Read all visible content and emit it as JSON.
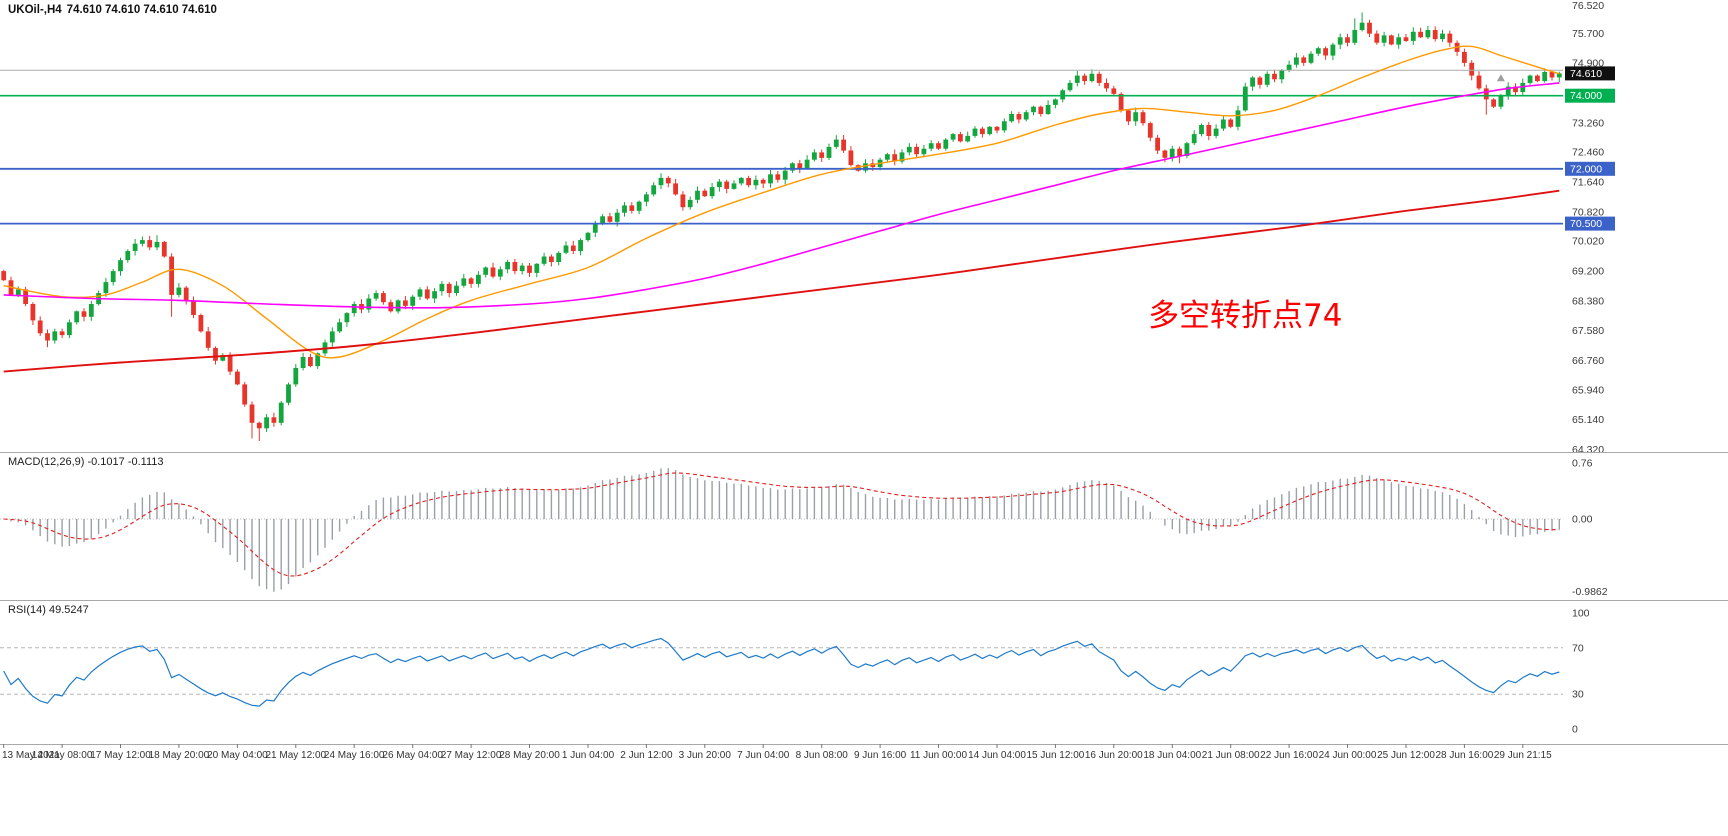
{
  "chart_data": [
    {
      "id": "price",
      "type": "candlestick",
      "title": "UKOil-,H4",
      "symbol": "UKOil-",
      "timeframe": "H4",
      "ohlc_readout": "74.610 74.610 74.610 74.610",
      "y_axis": {
        "max": 76.62,
        "min": 64.25,
        "tick_labels": [
          "76.520",
          "75.700",
          "74.900",
          "73.260",
          "72.460",
          "71.640",
          "70.820",
          "70.020",
          "69.200",
          "68.380",
          "67.580",
          "66.760",
          "65.940",
          "65.140",
          "64.320"
        ],
        "tick_values": [
          76.52,
          75.7,
          74.9,
          73.26,
          72.46,
          71.64,
          70.82,
          70.02,
          69.2,
          68.38,
          67.58,
          66.76,
          65.94,
          65.14,
          64.32
        ]
      },
      "up_color": "#14A63E",
      "down_color": "#E8352B",
      "first_open": 69.2,
      "closes": [
        68.95,
        68.55,
        68.7,
        68.3,
        67.85,
        67.5,
        67.3,
        67.55,
        67.45,
        67.8,
        68.1,
        67.95,
        68.3,
        68.6,
        68.9,
        69.2,
        69.5,
        69.75,
        69.95,
        70.05,
        69.85,
        70.0,
        69.6,
        68.55,
        68.75,
        68.4,
        68.0,
        67.55,
        67.1,
        66.75,
        66.9,
        66.45,
        66.1,
        65.55,
        65.05,
        64.9,
        65.2,
        65.05,
        65.6,
        66.1,
        66.55,
        66.85,
        66.6,
        66.95,
        67.25,
        67.55,
        67.8,
        68.05,
        68.3,
        68.15,
        68.45,
        68.6,
        68.35,
        68.1,
        68.4,
        68.25,
        68.5,
        68.7,
        68.45,
        68.65,
        68.85,
        68.6,
        68.8,
        69.0,
        68.85,
        69.1,
        69.3,
        69.05,
        69.25,
        69.45,
        69.2,
        69.35,
        69.15,
        69.4,
        69.6,
        69.45,
        69.7,
        69.9,
        69.75,
        70.05,
        70.25,
        70.5,
        70.7,
        70.55,
        70.8,
        71.0,
        70.85,
        71.1,
        71.3,
        71.55,
        71.75,
        71.6,
        71.3,
        70.95,
        71.15,
        71.4,
        71.25,
        71.5,
        71.65,
        71.45,
        71.6,
        71.75,
        71.55,
        71.7,
        71.6,
        71.85,
        71.7,
        71.95,
        72.15,
        72.0,
        72.25,
        72.45,
        72.3,
        72.6,
        72.8,
        72.5,
        72.1,
        71.95,
        72.15,
        72.05,
        72.25,
        72.4,
        72.2,
        72.45,
        72.6,
        72.4,
        72.55,
        72.7,
        72.55,
        72.8,
        72.95,
        72.75,
        72.9,
        73.1,
        72.95,
        73.15,
        73.05,
        73.3,
        73.5,
        73.35,
        73.55,
        73.7,
        73.5,
        73.75,
        73.9,
        74.15,
        74.35,
        74.55,
        74.4,
        74.6,
        74.35,
        74.2,
        74.05,
        73.6,
        73.3,
        73.55,
        73.25,
        72.85,
        72.5,
        72.3,
        72.55,
        72.35,
        72.7,
        72.95,
        73.2,
        72.9,
        73.1,
        73.35,
        73.15,
        73.6,
        74.25,
        74.5,
        74.3,
        74.6,
        74.45,
        74.7,
        74.85,
        75.05,
        74.9,
        75.15,
        75.3,
        75.1,
        75.4,
        75.6,
        75.45,
        75.8,
        76.0,
        75.7,
        75.45,
        75.65,
        75.4,
        75.6,
        75.5,
        75.75,
        75.6,
        75.8,
        75.55,
        75.7,
        75.45,
        75.2,
        74.9,
        74.55,
        74.2,
        73.9,
        73.7,
        74.0,
        74.25,
        74.1,
        74.35,
        74.55,
        74.4,
        74.65,
        74.5,
        74.61
      ],
      "wick_overrides": [
        {
          "bar": 6,
          "low": 67.12
        },
        {
          "bar": 21,
          "high": 70.18
        },
        {
          "bar": 23,
          "low": 67.95
        },
        {
          "bar": 34,
          "low": 64.62
        },
        {
          "bar": 35,
          "low": 64.55
        },
        {
          "bar": 90,
          "high": 71.88
        },
        {
          "bar": 114,
          "high": 72.92
        },
        {
          "bar": 147,
          "high": 74.68
        },
        {
          "bar": 149,
          "high": 74.72
        },
        {
          "bar": 159,
          "low": 72.18
        },
        {
          "bar": 161,
          "low": 72.15
        },
        {
          "bar": 185,
          "high": 76.12
        },
        {
          "bar": 186,
          "high": 76.28
        },
        {
          "bar": 203,
          "low": 73.48
        },
        {
          "bar": 211,
          "high": 74.75
        }
      ],
      "moving_averages": [
        {
          "name": "fast",
          "color": "#FF9900",
          "width": 1.4,
          "points": [
            [
              0,
              68.8
            ],
            [
              8,
              68.5
            ],
            [
              14,
              68.55
            ],
            [
              19,
              68.9
            ],
            [
              24,
              69.25
            ],
            [
              30,
              68.8
            ],
            [
              36,
              67.9
            ],
            [
              42,
              67.0
            ],
            [
              46,
              66.85
            ],
            [
              52,
              67.3
            ],
            [
              58,
              67.9
            ],
            [
              64,
              68.4
            ],
            [
              72,
              68.85
            ],
            [
              80,
              69.3
            ],
            [
              88,
              70.1
            ],
            [
              96,
              70.8
            ],
            [
              104,
              71.35
            ],
            [
              112,
              71.85
            ],
            [
              120,
              72.15
            ],
            [
              128,
              72.4
            ],
            [
              136,
              72.7
            ],
            [
              144,
              73.2
            ],
            [
              150,
              73.5
            ],
            [
              156,
              73.65
            ],
            [
              162,
              73.55
            ],
            [
              168,
              73.45
            ],
            [
              174,
              73.6
            ],
            [
              180,
              74.0
            ],
            [
              186,
              74.5
            ],
            [
              192,
              74.95
            ],
            [
              197,
              75.25
            ],
            [
              201,
              75.35
            ],
            [
              205,
              75.1
            ],
            [
              209,
              74.85
            ],
            [
              213,
              74.6
            ]
          ]
        },
        {
          "name": "mid",
          "color": "#FF00FF",
          "width": 1.6,
          "points": [
            [
              0,
              68.55
            ],
            [
              12,
              68.45
            ],
            [
              24,
              68.4
            ],
            [
              36,
              68.3
            ],
            [
              48,
              68.22
            ],
            [
              60,
              68.2
            ],
            [
              72,
              68.3
            ],
            [
              80,
              68.45
            ],
            [
              88,
              68.7
            ],
            [
              96,
              69.0
            ],
            [
              104,
              69.4
            ],
            [
              112,
              69.85
            ],
            [
              120,
              70.3
            ],
            [
              128,
              70.75
            ],
            [
              136,
              71.15
            ],
            [
              144,
              71.55
            ],
            [
              152,
              71.95
            ],
            [
              160,
              72.3
            ],
            [
              168,
              72.65
            ],
            [
              176,
              73.0
            ],
            [
              184,
              73.35
            ],
            [
              192,
              73.7
            ],
            [
              200,
              74.0
            ],
            [
              206,
              74.2
            ],
            [
              213,
              74.35
            ]
          ]
        },
        {
          "name": "slow",
          "color": "#E01010",
          "width": 1.9,
          "points": [
            [
              0,
              66.45
            ],
            [
              16,
              66.7
            ],
            [
              32,
              66.9
            ],
            [
              48,
              67.15
            ],
            [
              64,
              67.5
            ],
            [
              80,
              67.9
            ],
            [
              96,
              68.3
            ],
            [
              112,
              68.7
            ],
            [
              128,
              69.1
            ],
            [
              144,
              69.55
            ],
            [
              160,
              70.0
            ],
            [
              176,
              70.4
            ],
            [
              192,
              70.85
            ],
            [
              204,
              71.15
            ],
            [
              213,
              71.4
            ]
          ]
        }
      ],
      "horizontal_lines": [
        {
          "price": 74.7,
          "color": "#ABABAB",
          "width": 1
        },
        {
          "price": 74.0,
          "color": "#00B050",
          "width": 1.6,
          "badge": "74.000"
        },
        {
          "price": 72.0,
          "color": "#3A62C9",
          "width": 1.8,
          "badge": "72.000"
        },
        {
          "price": 70.5,
          "color": "#3A62C9",
          "width": 1.8,
          "badge": "70.500"
        }
      ],
      "price_marker": {
        "label": "74.610",
        "value": 74.61,
        "bg": "#101010",
        "fg": "#FFFFFF"
      },
      "annotations": [
        {
          "type": "text",
          "text": "多空转折点74",
          "color": "#FF0000",
          "font_size": 31,
          "bar": 170,
          "price": 67.7
        },
        {
          "type": "arrow-up",
          "bar": 205,
          "price": 74.48,
          "color": "#9E9E9E"
        }
      ]
    },
    {
      "id": "macd",
      "type": "histogram+line",
      "name": "MACD",
      "label": "MACD(12,26,9) -0.1017 -0.1113",
      "params": {
        "fast": 12,
        "slow": 26,
        "signal": 9
      },
      "values": [
        -0.1017,
        -0.1113
      ],
      "y_axis": {
        "tick_labels": [
          "0.76",
          "0.00",
          "-0.9862"
        ],
        "tick_values": [
          0.76,
          0,
          -0.9862
        ]
      },
      "histogram_color": "#99A0A8",
      "signal_color": "#E02020"
    },
    {
      "id": "rsi",
      "type": "line",
      "name": "RSI",
      "label": "RSI(14) 49.5247",
      "period": 14,
      "value": 49.5247,
      "y_axis": {
        "tick_labels": [
          "100",
          "70",
          "30",
          "0"
        ],
        "tick_values": [
          100,
          70,
          30,
          0
        ]
      },
      "levels": [
        70,
        30
      ],
      "line_color": "#1F7AC9"
    }
  ],
  "time_axis": {
    "bars_per_label": 8,
    "labels": [
      "13 May 2021",
      "14 May 08:00",
      "17 May 12:00",
      "18 May 20:00",
      "20 May 04:00",
      "21 May 12:00",
      "24 May 16:00",
      "26 May 04:00",
      "27 May 12:00",
      "28 May 20:00",
      "1 Jun 04:00",
      "2 Jun 12:00",
      "3 Jun 20:00",
      "7 Jun 04:00",
      "8 Jun 08:00",
      "9 Jun 16:00",
      "11 Jun 00:00",
      "14 Jun 04:00",
      "15 Jun 12:00",
      "16 Jun 20:00",
      "18 Jun 04:00",
      "21 Jun 08:00",
      "22 Jun 16:00",
      "24 Jun 00:00",
      "25 Jun 12:00",
      "28 Jun 16:00",
      "29 Jun 21:15"
    ]
  }
}
